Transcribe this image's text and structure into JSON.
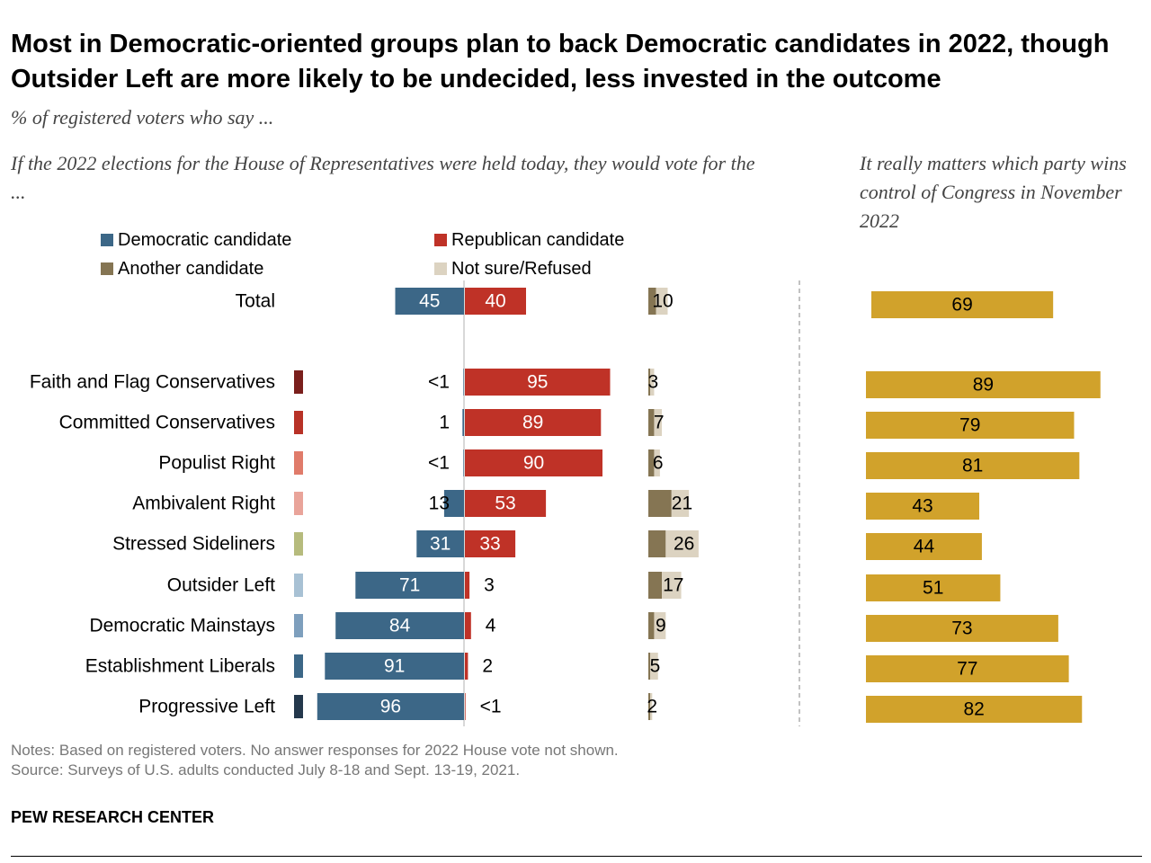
{
  "title": "Most in Democratic-oriented groups plan to back Democratic candidates in 2022, though Outsider Left are more likely to be undecided, less invested in the outcome",
  "subtitle": "% of registered voters who say ...",
  "left_heading": "If the 2022 elections for the House of Representatives were held today, they would vote for the ...",
  "right_heading": "It really matters which party wins control of Congress in November 2022",
  "notes": [
    "Notes: Based on registered voters. No answer responses for 2022 House vote not shown.",
    "Source: Surveys of U.S. adults conducted July 8-18 and Sept. 13-19, 2021."
  ],
  "footer": "PEW RESEARCH CENTER",
  "chart_data": {
    "type": "bar",
    "legend": [
      {
        "name": "Democratic candidate",
        "color": "#3c6787"
      },
      {
        "name": "Republican candidate",
        "color": "#bf3227"
      },
      {
        "name": "Another candidate",
        "color": "#857553"
      },
      {
        "name": "Not sure/Refused",
        "color": "#dcd3c1"
      }
    ],
    "matters_color": "#d1a22b",
    "rows": [
      {
        "label": "Total",
        "dem": 45,
        "rep": 40,
        "other": 4,
        "notsure": 6,
        "other_label": "10",
        "dem_label": "45",
        "rep_label": "40",
        "matters": 69
      },
      {
        "label": "Faith and Flag Conservatives",
        "marker": "#7a1f1c",
        "dem": 0.4,
        "rep": 95,
        "other": 1,
        "notsure": 2,
        "other_label": "3",
        "dem_label": "<1",
        "rep_label": "95",
        "matters": 89
      },
      {
        "label": "Committed Conservatives",
        "marker": "#b83227",
        "dem": 1,
        "rep": 89,
        "other": 3,
        "notsure": 4,
        "other_label": "7",
        "dem_label": "1",
        "rep_label": "89",
        "matters": 79
      },
      {
        "label": "Populist Right",
        "marker": "#e07b6a",
        "dem": 0.4,
        "rep": 90,
        "other": 3,
        "notsure": 3,
        "other_label": "6",
        "dem_label": "<1",
        "rep_label": "90",
        "matters": 81
      },
      {
        "label": "Ambivalent Right",
        "marker": "#e9a49a",
        "dem": 13,
        "rep": 53,
        "other": 12,
        "notsure": 9,
        "other_label": "21",
        "dem_label": "13",
        "rep_label": "53",
        "matters": 43
      },
      {
        "label": "Stressed Sideliners",
        "marker": "#b6bb7d",
        "dem": 31,
        "rep": 33,
        "other": 9,
        "notsure": 17,
        "other_label": "26",
        "dem_label": "31",
        "rep_label": "33",
        "matters": 44
      },
      {
        "label": "Outsider Left",
        "marker": "#a8c1d4",
        "dem": 71,
        "rep": 3,
        "other": 7,
        "notsure": 10,
        "other_label": "17",
        "dem_label": "71",
        "rep_label": "3",
        "matters": 51
      },
      {
        "label": "Democratic Mainstays",
        "marker": "#7e9fbd",
        "dem": 84,
        "rep": 4,
        "other": 3,
        "notsure": 6,
        "other_label": "9",
        "dem_label": "84",
        "rep_label": "4",
        "matters": 73
      },
      {
        "label": "Establishment Liberals",
        "marker": "#3c6787",
        "dem": 91,
        "rep": 2,
        "other": 1,
        "notsure": 4,
        "other_label": "5",
        "dem_label": "91",
        "rep_label": "2",
        "matters": 77
      },
      {
        "label": "Progressive Left",
        "marker": "#24384c",
        "dem": 96,
        "rep": 0.4,
        "other": 1,
        "notsure": 1,
        "other_label": "2",
        "dem_label": "96",
        "rep_label": "<1",
        "matters": 82
      }
    ]
  }
}
